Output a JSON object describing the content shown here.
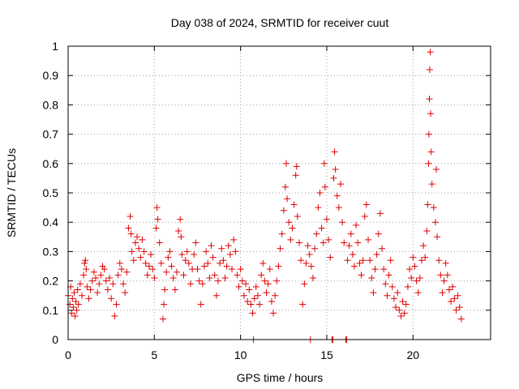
{
  "chart_data": {
    "type": "scatter",
    "title": "Day 038 of 2024, SRMTID for receiver cuut",
    "xlabel": "GPS time / hours",
    "ylabel": "SRMTID / TECUs",
    "xlim": [
      0,
      24.5
    ],
    "ylim": [
      0,
      1
    ],
    "xticks": [
      0,
      5,
      10,
      15,
      20
    ],
    "xtick_labels": [
      "0",
      "5",
      "10",
      "15",
      "20"
    ],
    "yticks": [
      0,
      0.1,
      0.2,
      0.3,
      0.4,
      0.5,
      0.6,
      0.7,
      0.8,
      0.9,
      1
    ],
    "ytick_labels": [
      "0",
      "0.1",
      "0.2",
      "0.3",
      "0.4",
      "0.5",
      "0.6",
      "0.7",
      "0.8",
      "0.9",
      "1"
    ],
    "grid": true,
    "marker": "plus",
    "color": "#e00000",
    "series": [
      {
        "name": "SRMTID",
        "points": [
          [
            0.0,
            0.15
          ],
          [
            0.1,
            0.12
          ],
          [
            0.15,
            0.18
          ],
          [
            0.2,
            0.09
          ],
          [
            0.25,
            0.14
          ],
          [
            0.3,
            0.11
          ],
          [
            0.35,
            0.16
          ],
          [
            0.4,
            0.08
          ],
          [
            0.45,
            0.13
          ],
          [
            0.5,
            0.1
          ],
          [
            0.55,
            0.17
          ],
          [
            0.6,
            0.12
          ],
          [
            0.7,
            0.19
          ],
          [
            0.8,
            0.15
          ],
          [
            0.9,
            0.22
          ],
          [
            0.95,
            0.26
          ],
          [
            1.0,
            0.27
          ],
          [
            1.05,
            0.24
          ],
          [
            1.1,
            0.18
          ],
          [
            1.2,
            0.14
          ],
          [
            1.3,
            0.17
          ],
          [
            1.4,
            0.2
          ],
          [
            1.5,
            0.23
          ],
          [
            1.6,
            0.21
          ],
          [
            1.7,
            0.16
          ],
          [
            1.8,
            0.19
          ],
          [
            1.9,
            0.22
          ],
          [
            2.0,
            0.25
          ],
          [
            2.1,
            0.24
          ],
          [
            2.2,
            0.2
          ],
          [
            2.3,
            0.17
          ],
          [
            2.4,
            0.21
          ],
          [
            2.5,
            0.14
          ],
          [
            2.6,
            0.19
          ],
          [
            2.7,
            0.08
          ],
          [
            2.8,
            0.12
          ],
          [
            2.9,
            0.22
          ],
          [
            3.0,
            0.26
          ],
          [
            3.1,
            0.24
          ],
          [
            3.2,
            0.19
          ],
          [
            3.3,
            0.16
          ],
          [
            3.4,
            0.23
          ],
          [
            3.5,
            0.38
          ],
          [
            3.6,
            0.42
          ],
          [
            3.65,
            0.36
          ],
          [
            3.7,
            0.3
          ],
          [
            3.8,
            0.27
          ],
          [
            3.9,
            0.33
          ],
          [
            4.0,
            0.35
          ],
          [
            4.1,
            0.31
          ],
          [
            4.2,
            0.28
          ],
          [
            4.3,
            0.34
          ],
          [
            4.4,
            0.3
          ],
          [
            4.5,
            0.26
          ],
          [
            4.6,
            0.22
          ],
          [
            4.7,
            0.25
          ],
          [
            4.8,
            0.29
          ],
          [
            4.9,
            0.24
          ],
          [
            5.0,
            0.21
          ],
          [
            5.1,
            0.38
          ],
          [
            5.15,
            0.45
          ],
          [
            5.2,
            0.41
          ],
          [
            5.3,
            0.33
          ],
          [
            5.4,
            0.26
          ],
          [
            5.5,
            0.07
          ],
          [
            5.55,
            0.12
          ],
          [
            5.6,
            0.17
          ],
          [
            5.7,
            0.23
          ],
          [
            5.8,
            0.28
          ],
          [
            5.9,
            0.3
          ],
          [
            6.0,
            0.25
          ],
          [
            6.1,
            0.21
          ],
          [
            6.2,
            0.17
          ],
          [
            6.3,
            0.23
          ],
          [
            6.4,
            0.37
          ],
          [
            6.5,
            0.41
          ],
          [
            6.55,
            0.35
          ],
          [
            6.6,
            0.29
          ],
          [
            6.7,
            0.22
          ],
          [
            6.8,
            0.27
          ],
          [
            6.9,
            0.3
          ],
          [
            7.0,
            0.26
          ],
          [
            7.1,
            0.19
          ],
          [
            7.2,
            0.24
          ],
          [
            7.3,
            0.29
          ],
          [
            7.4,
            0.33
          ],
          [
            7.5,
            0.24
          ],
          [
            7.6,
            0.2
          ],
          [
            7.7,
            0.12
          ],
          [
            7.8,
            0.19
          ],
          [
            7.9,
            0.25
          ],
          [
            8.0,
            0.3
          ],
          [
            8.1,
            0.26
          ],
          [
            8.2,
            0.21
          ],
          [
            8.3,
            0.32
          ],
          [
            8.4,
            0.28
          ],
          [
            8.5,
            0.22
          ],
          [
            8.6,
            0.15
          ],
          [
            8.7,
            0.2
          ],
          [
            8.8,
            0.26
          ],
          [
            8.9,
            0.31
          ],
          [
            9.0,
            0.27
          ],
          [
            9.1,
            0.21
          ],
          [
            9.2,
            0.25
          ],
          [
            9.3,
            0.32
          ],
          [
            9.4,
            0.29
          ],
          [
            9.5,
            0.24
          ],
          [
            9.6,
            0.34
          ],
          [
            9.7,
            0.3
          ],
          [
            9.8,
            0.22
          ],
          [
            9.9,
            0.18
          ],
          [
            10.0,
            0.24
          ],
          [
            10.1,
            0.2
          ],
          [
            10.2,
            0.15
          ],
          [
            10.3,
            0.19
          ],
          [
            10.4,
            0.13
          ],
          [
            10.5,
            0.17
          ],
          [
            10.6,
            0.12
          ],
          [
            10.7,
            0.09
          ],
          [
            10.75,
            0.0
          ],
          [
            10.8,
            0.14
          ],
          [
            10.9,
            0.18
          ],
          [
            11.0,
            0.15
          ],
          [
            11.1,
            0.12
          ],
          [
            11.2,
            0.22
          ],
          [
            11.3,
            0.26
          ],
          [
            11.4,
            0.2
          ],
          [
            11.5,
            0.16
          ],
          [
            11.6,
            0.19
          ],
          [
            11.7,
            0.24
          ],
          [
            11.8,
            0.13
          ],
          [
            11.9,
            0.09
          ],
          [
            12.0,
            0.15
          ],
          [
            12.1,
            0.2
          ],
          [
            12.2,
            0.25
          ],
          [
            12.3,
            0.31
          ],
          [
            12.4,
            0.36
          ],
          [
            12.5,
            0.44
          ],
          [
            12.6,
            0.52
          ],
          [
            12.65,
            0.6
          ],
          [
            12.7,
            0.48
          ],
          [
            12.8,
            0.4
          ],
          [
            12.9,
            0.34
          ],
          [
            13.0,
            0.38
          ],
          [
            13.1,
            0.46
          ],
          [
            13.2,
            0.56
          ],
          [
            13.25,
            0.59
          ],
          [
            13.3,
            0.42
          ],
          [
            13.4,
            0.33
          ],
          [
            13.5,
            0.27
          ],
          [
            13.6,
            0.12
          ],
          [
            13.7,
            0.19
          ],
          [
            13.8,
            0.26
          ],
          [
            13.9,
            0.32
          ],
          [
            14.0,
            0.29
          ],
          [
            14.05,
            0.0
          ],
          [
            14.1,
            0.25
          ],
          [
            14.2,
            0.21
          ],
          [
            14.3,
            0.31
          ],
          [
            14.4,
            0.36
          ],
          [
            14.5,
            0.45
          ],
          [
            14.6,
            0.5
          ],
          [
            14.7,
            0.38
          ],
          [
            14.8,
            0.33
          ],
          [
            14.85,
            0.6
          ],
          [
            14.9,
            0.52
          ],
          [
            15.0,
            0.41
          ],
          [
            15.1,
            0.34
          ],
          [
            15.2,
            0.28
          ],
          [
            15.3,
            0.0
          ],
          [
            15.35,
            0.0
          ],
          [
            15.4,
            0.55
          ],
          [
            15.45,
            0.64
          ],
          [
            15.5,
            0.58
          ],
          [
            15.6,
            0.49
          ],
          [
            15.7,
            0.45
          ],
          [
            15.8,
            0.53
          ],
          [
            15.9,
            0.4
          ],
          [
            16.0,
            0.33
          ],
          [
            16.1,
            0.0
          ],
          [
            16.15,
            0.0
          ],
          [
            16.2,
            0.27
          ],
          [
            16.3,
            0.32
          ],
          [
            16.4,
            0.36
          ],
          [
            16.5,
            0.29
          ],
          [
            16.6,
            0.25
          ],
          [
            16.7,
            0.39
          ],
          [
            16.8,
            0.33
          ],
          [
            16.9,
            0.26
          ],
          [
            17.0,
            0.22
          ],
          [
            17.1,
            0.27
          ],
          [
            17.2,
            0.42
          ],
          [
            17.3,
            0.46
          ],
          [
            17.4,
            0.34
          ],
          [
            17.5,
            0.27
          ],
          [
            17.6,
            0.21
          ],
          [
            17.7,
            0.16
          ],
          [
            17.8,
            0.24
          ],
          [
            17.9,
            0.29
          ],
          [
            18.0,
            0.36
          ],
          [
            18.1,
            0.43
          ],
          [
            18.2,
            0.31
          ],
          [
            18.3,
            0.24
          ],
          [
            18.4,
            0.19
          ],
          [
            18.5,
            0.15
          ],
          [
            18.6,
            0.22
          ],
          [
            18.7,
            0.27
          ],
          [
            18.8,
            0.18
          ],
          [
            18.9,
            0.14
          ],
          [
            19.0,
            0.11
          ],
          [
            19.1,
            0.16
          ],
          [
            19.2,
            0.1
          ],
          [
            19.3,
            0.08
          ],
          [
            19.4,
            0.13
          ],
          [
            19.5,
            0.09
          ],
          [
            19.6,
            0.12
          ],
          [
            19.7,
            0.18
          ],
          [
            19.8,
            0.24
          ],
          [
            19.9,
            0.21
          ],
          [
            20.0,
            0.28
          ],
          [
            20.1,
            0.25
          ],
          [
            20.2,
            0.2
          ],
          [
            20.3,
            0.16
          ],
          [
            20.4,
            0.21
          ],
          [
            20.5,
            0.27
          ],
          [
            20.6,
            0.32
          ],
          [
            20.7,
            0.28
          ],
          [
            20.8,
            0.37
          ],
          [
            20.85,
            0.46
          ],
          [
            20.9,
            0.6
          ],
          [
            20.92,
            0.7
          ],
          [
            20.95,
            0.82
          ],
          [
            20.97,
            0.92
          ],
          [
            21.0,
            0.98
          ],
          [
            21.02,
            0.77
          ],
          [
            21.05,
            0.64
          ],
          [
            21.1,
            0.53
          ],
          [
            21.2,
            0.45
          ],
          [
            21.3,
            0.4
          ],
          [
            21.35,
            0.58
          ],
          [
            21.4,
            0.35
          ],
          [
            21.5,
            0.27
          ],
          [
            21.6,
            0.22
          ],
          [
            21.7,
            0.16
          ],
          [
            21.8,
            0.2
          ],
          [
            21.9,
            0.26
          ],
          [
            22.0,
            0.22
          ],
          [
            22.1,
            0.17
          ],
          [
            22.2,
            0.13
          ],
          [
            22.3,
            0.18
          ],
          [
            22.4,
            0.14
          ],
          [
            22.5,
            0.1
          ],
          [
            22.6,
            0.15
          ],
          [
            22.7,
            0.11
          ],
          [
            22.8,
            0.07
          ]
        ]
      }
    ]
  }
}
